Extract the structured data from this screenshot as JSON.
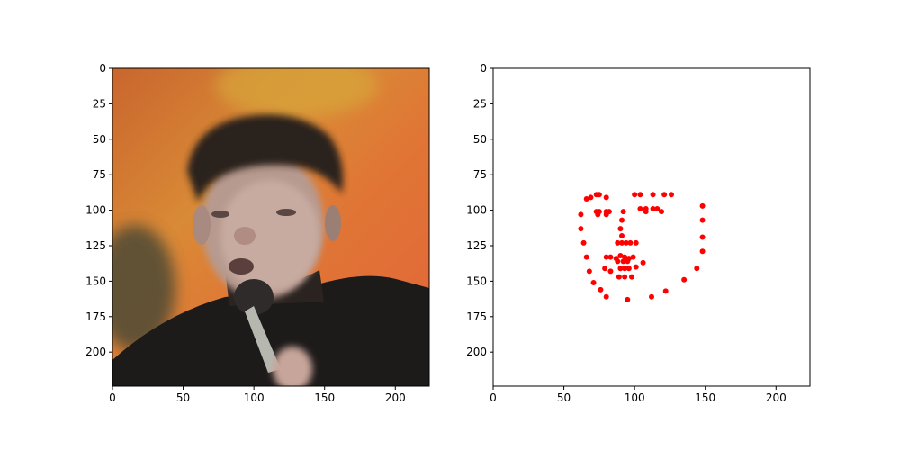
{
  "chart_data": [
    {
      "type": "image",
      "title": "",
      "xlabel": "",
      "ylabel": "",
      "xlim": [
        0,
        224
      ],
      "ylim": [
        224,
        0
      ],
      "x_ticks": [
        0,
        50,
        100,
        150,
        200
      ],
      "y_ticks": [
        0,
        25,
        50,
        75,
        100,
        125,
        150,
        175,
        200
      ],
      "image_description_icon": "photo-icon"
    },
    {
      "type": "scatter",
      "title": "",
      "xlabel": "",
      "ylabel": "",
      "xlim": [
        0,
        224
      ],
      "ylim": [
        224,
        0
      ],
      "x_ticks": [
        0,
        50,
        100,
        150,
        200
      ],
      "y_ticks": [
        0,
        25,
        50,
        75,
        100,
        125,
        150,
        175,
        200
      ],
      "grid": false,
      "marker_color": "#ff0000",
      "series": [
        {
          "points": [
            [
              62,
              103
            ],
            [
              62,
              113
            ],
            [
              64,
              123
            ],
            [
              66,
              133
            ],
            [
              68,
              143
            ],
            [
              71,
              151
            ],
            [
              76,
              156
            ],
            [
              80,
              161
            ],
            [
              95,
              163
            ],
            [
              112,
              161
            ],
            [
              122,
              157
            ],
            [
              135,
              149
            ],
            [
              144,
              141
            ],
            [
              148,
              129
            ],
            [
              148,
              119
            ],
            [
              148,
              107
            ],
            [
              148,
              97
            ],
            [
              66,
              92
            ],
            [
              69,
              91
            ],
            [
              73,
              89
            ],
            [
              75,
              89
            ],
            [
              80,
              91
            ],
            [
              100,
              89
            ],
            [
              104,
              89
            ],
            [
              113,
              89
            ],
            [
              121,
              89
            ],
            [
              126,
              89
            ],
            [
              92,
              101
            ],
            [
              91,
              107
            ],
            [
              90,
              113
            ],
            [
              91,
              118
            ],
            [
              88,
              123
            ],
            [
              91,
              123
            ],
            [
              94,
              123
            ],
            [
              97,
              123
            ],
            [
              101,
              123
            ],
            [
              73,
              101
            ],
            [
              75,
              101
            ],
            [
              74,
              103
            ],
            [
              80,
              101
            ],
            [
              82,
              101
            ],
            [
              80,
              103
            ],
            [
              104,
              99
            ],
            [
              108,
              99
            ],
            [
              108,
              101
            ],
            [
              113,
              99
            ],
            [
              116,
              99
            ],
            [
              119,
              101
            ],
            [
              80,
              133
            ],
            [
              83,
              133
            ],
            [
              87,
              134
            ],
            [
              90,
              132
            ],
            [
              93,
              133
            ],
            [
              96,
              134
            ],
            [
              99,
              133
            ],
            [
              101,
              140
            ],
            [
              106,
              137
            ],
            [
              98,
              147
            ],
            [
              93,
              147
            ],
            [
              89,
              147
            ],
            [
              83,
              143
            ],
            [
              79,
              141
            ],
            [
              88,
              136
            ],
            [
              92,
              136
            ],
            [
              95,
              136
            ],
            [
              90,
              141
            ],
            [
              93,
              141
            ],
            [
              96,
              141
            ]
          ]
        }
      ]
    }
  ]
}
